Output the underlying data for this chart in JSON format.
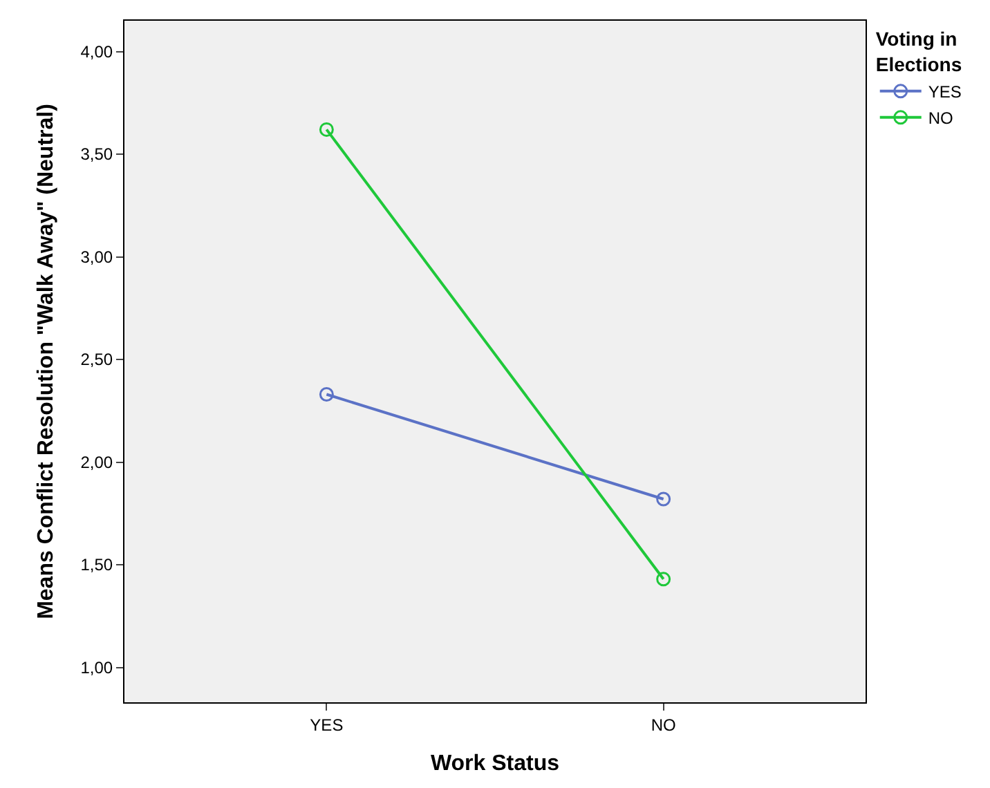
{
  "chart_data": {
    "type": "line",
    "xlabel": "Work Status",
    "ylabel": "Means Conflict Resolution \"Walk Away\" (Neutral)",
    "legend_title": "Voting in\nElections",
    "categories": [
      "YES",
      "NO"
    ],
    "series": [
      {
        "name": "YES",
        "color": "#5b72c6",
        "values": [
          2.33,
          1.82
        ]
      },
      {
        "name": "NO",
        "color": "#1fc83a",
        "values": [
          3.62,
          1.43
        ]
      }
    ],
    "ylim": [
      0.83,
      4.15
    ],
    "yticks": [
      {
        "value": 1.0,
        "label": "1,00"
      },
      {
        "value": 1.5,
        "label": "1,50"
      },
      {
        "value": 2.0,
        "label": "2,00"
      },
      {
        "value": 2.5,
        "label": "2,50"
      },
      {
        "value": 3.0,
        "label": "3,00"
      },
      {
        "value": 3.5,
        "label": "3,50"
      },
      {
        "value": 4.0,
        "label": "4,00"
      }
    ],
    "grid": false,
    "legend": "top right",
    "marker": "circle",
    "line_style": "solid"
  }
}
